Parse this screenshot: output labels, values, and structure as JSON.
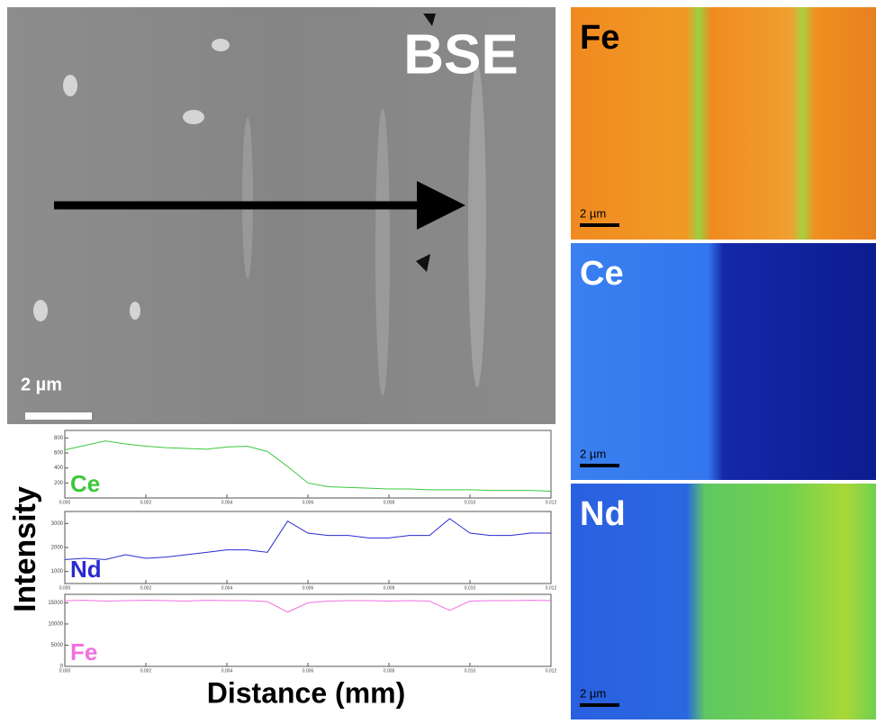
{
  "bse": {
    "label": "BSE",
    "scale_bar": "2 µm"
  },
  "maps": [
    {
      "element": "Fe",
      "scale_bar": "2 µm"
    },
    {
      "element": "Ce",
      "scale_bar": "2 µm"
    },
    {
      "element": "Nd",
      "scale_bar": "2 µm"
    }
  ],
  "line_scans": {
    "y_label": "Intensity",
    "x_label": "Distance (mm)",
    "xlim": [
      0,
      0.012
    ],
    "xticks": [
      {
        "value": 0,
        "label": "0.000"
      },
      {
        "value": 0.002,
        "label": "0.002"
      },
      {
        "value": 0.004,
        "label": "0.004"
      },
      {
        "value": 0.006,
        "label": "0.006"
      },
      {
        "value": 0.008,
        "label": "0.008"
      },
      {
        "value": 0.01,
        "label": "0.010"
      },
      {
        "value": 0.012,
        "label": "0.012"
      }
    ],
    "x": [
      0,
      0.0005,
      0.001,
      0.0015,
      0.002,
      0.0025,
      0.003,
      0.0035,
      0.004,
      0.0045,
      0.005,
      0.0055,
      0.006,
      0.0065,
      0.007,
      0.0075,
      0.008,
      0.0085,
      0.009,
      0.0095,
      0.01,
      0.0105,
      0.011,
      0.0115,
      0.012
    ],
    "panels": [
      {
        "name": "Ce",
        "color": "#3cc83c",
        "ylim": [
          0,
          900
        ],
        "yticks": [
          200,
          400,
          600,
          800
        ],
        "values": [
          640,
          700,
          760,
          720,
          690,
          670,
          660,
          650,
          680,
          690,
          620,
          420,
          200,
          150,
          140,
          130,
          120,
          120,
          110,
          110,
          110,
          100,
          100,
          100,
          90
        ]
      },
      {
        "name": "Nd",
        "color": "#2a2ad0",
        "ylim": [
          500,
          3500
        ],
        "yticks": [
          1000,
          2000,
          3000
        ],
        "values": [
          1500,
          1550,
          1500,
          1700,
          1550,
          1600,
          1700,
          1800,
          1900,
          1900,
          1800,
          3100,
          2600,
          2500,
          2500,
          2400,
          2400,
          2500,
          2500,
          3200,
          2600,
          2500,
          2500,
          2600,
          2600
        ]
      },
      {
        "name": "Fe",
        "color": "#f070e0",
        "ylim": [
          0,
          17000
        ],
        "yticks": [
          0,
          5000,
          10000,
          15000
        ],
        "values": [
          15500,
          15600,
          15400,
          15500,
          15600,
          15500,
          15400,
          15600,
          15500,
          15500,
          15300,
          12800,
          15000,
          15400,
          15500,
          15500,
          15400,
          15500,
          15400,
          13200,
          15400,
          15500,
          15500,
          15600,
          15500
        ]
      }
    ]
  }
}
